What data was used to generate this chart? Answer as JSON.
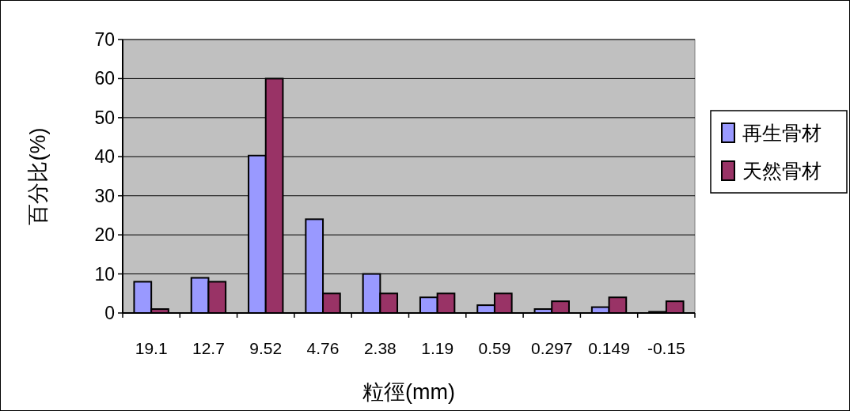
{
  "chart_data": {
    "type": "bar",
    "xlabel": "粒徑(mm)",
    "ylabel": "百分比(%)",
    "categories": [
      "19.1",
      "12.7",
      "9.52",
      "4.76",
      "2.38",
      "1.19",
      "0.59",
      "0.297",
      "0.149",
      "-0.15"
    ],
    "series": [
      {
        "name": "再生骨材",
        "color": "#9999ff",
        "values": [
          8,
          9,
          40.3,
          24,
          10,
          4,
          2,
          1,
          1.5,
          0.3
        ]
      },
      {
        "name": "天然骨材",
        "color": "#993366",
        "values": [
          1,
          8,
          60,
          5,
          5,
          5,
          5,
          3,
          4,
          3
        ]
      }
    ],
    "ylim": [
      0,
      70
    ],
    "yticks": [
      0,
      10,
      20,
      30,
      40,
      50,
      60,
      70
    ],
    "grid": "y",
    "legend": "right"
  }
}
